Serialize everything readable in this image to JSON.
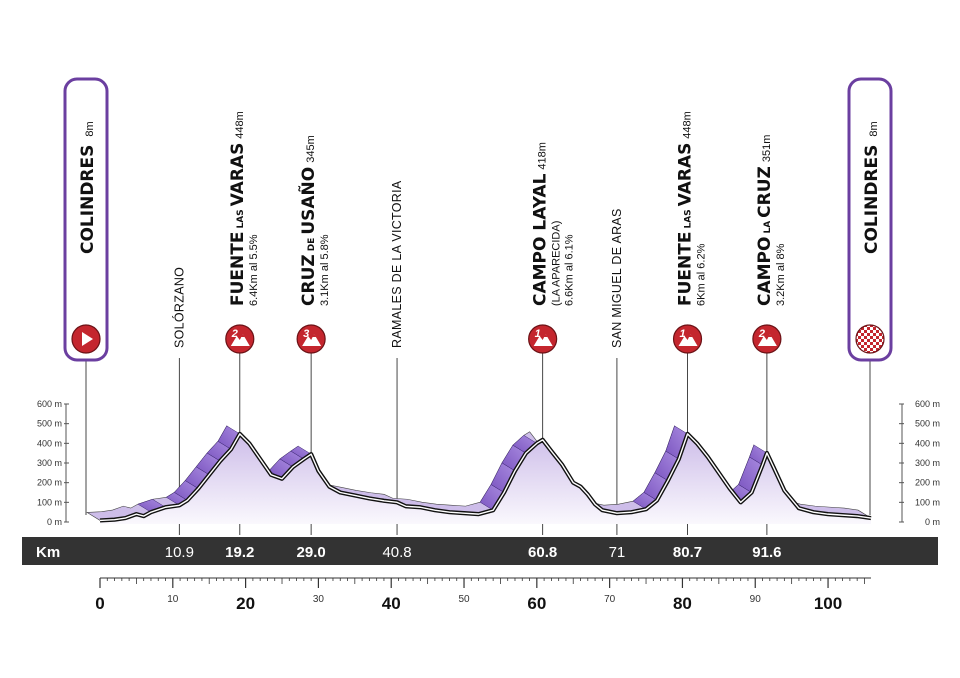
{
  "chart_data": {
    "type": "area",
    "title": "",
    "xlabel": "Km",
    "ylabel": "",
    "xlim": [
      0,
      105.9
    ],
    "ylim": [
      0,
      600
    ],
    "y_ticks": [
      "600 m",
      "500 m",
      "400 m",
      "300 m",
      "200 m",
      "100 m",
      "0 m"
    ],
    "x_ticks": [
      {
        "value": 0,
        "label": "0",
        "major": true
      },
      {
        "value": 10,
        "label": "10",
        "major": false
      },
      {
        "value": 20,
        "label": "20",
        "major": true
      },
      {
        "value": 30,
        "label": "30",
        "major": false
      },
      {
        "value": 40,
        "label": "40",
        "major": true
      },
      {
        "value": 50,
        "label": "50",
        "major": false
      },
      {
        "value": 60,
        "label": "60",
        "major": true
      },
      {
        "value": 70,
        "label": "70",
        "major": false
      },
      {
        "value": 80,
        "label": "80",
        "major": true
      },
      {
        "value": 90,
        "label": "90",
        "major": false
      },
      {
        "value": 100,
        "label": "100",
        "major": true
      }
    ],
    "profile": {
      "x": [
        0,
        2,
        3.5,
        5,
        6,
        7,
        9,
        10.9,
        12,
        13.5,
        15,
        16.5,
        18,
        19.2,
        20.5,
        22,
        23.5,
        25,
        26.5,
        28,
        29,
        30,
        31.5,
        33,
        35,
        37,
        39,
        40.8,
        42,
        44,
        46,
        48,
        50,
        52,
        54,
        55.5,
        57,
        58.5,
        60,
        60.8,
        62,
        63.5,
        65,
        66,
        67,
        68,
        69,
        71,
        73,
        75,
        76.5,
        78,
        79.5,
        80.7,
        82,
        83.5,
        85,
        86.5,
        88,
        89.5,
        91,
        91.6,
        92.5,
        94,
        96,
        98,
        100,
        102,
        104,
        105.9
      ],
      "y": [
        8,
        12,
        20,
        40,
        30,
        50,
        75,
        85,
        110,
        170,
        240,
        310,
        370,
        448,
        400,
        320,
        240,
        220,
        280,
        320,
        345,
        260,
        180,
        150,
        135,
        120,
        108,
        100,
        80,
        75,
        60,
        50,
        45,
        40,
        60,
        150,
        260,
        350,
        400,
        418,
        360,
        290,
        200,
        180,
        140,
        90,
        60,
        45,
        50,
        65,
        110,
        210,
        320,
        448,
        400,
        330,
        250,
        170,
        100,
        150,
        290,
        351,
        280,
        160,
        70,
        50,
        40,
        35,
        30,
        20
      ]
    },
    "start": {
      "name": "COLINDRES",
      "elevation": "8m",
      "km": 0
    },
    "finish": {
      "name": "COLINDRES",
      "elevation": "8m",
      "km": 105.9
    },
    "points": [
      {
        "type": "place",
        "name": "SOLÓRZANO",
        "km": 10.9,
        "km_label": "10.9"
      },
      {
        "type": "climb",
        "category": "2",
        "name_big1": "FUENTE",
        "name_small": "LAS",
        "name_big2": "VARAS",
        "elevation": "448m",
        "subtitle": "",
        "info": "6.4Km al 5.5%",
        "km": 19.2,
        "km_label": "19.2"
      },
      {
        "type": "climb",
        "category": "3",
        "name_big1": "CRUZ",
        "name_small": "DE",
        "name_big2": "USAÑO",
        "elevation": "345m",
        "subtitle": "",
        "info": "3.1Km al 5.8%",
        "km": 29.0,
        "km_label": "29.0"
      },
      {
        "type": "place",
        "name": "RAMALES DE LA VICTORIA",
        "km": 40.8,
        "km_label": "40.8"
      },
      {
        "type": "climb",
        "category": "1",
        "name_big1": "CAMPO LAYAL",
        "name_small": "",
        "name_big2": "",
        "elevation": "418m",
        "subtitle": "(LA APARECIDA)",
        "info": "6.6Km al 6.1%",
        "km": 60.8,
        "km_label": "60.8"
      },
      {
        "type": "place",
        "name": "SAN MIGUEL DE ARAS",
        "km": 71,
        "km_label": "71"
      },
      {
        "type": "climb",
        "category": "1",
        "name_big1": "FUENTE",
        "name_small": "LAS",
        "name_big2": "VARAS",
        "elevation": "448m",
        "subtitle": "",
        "info": "6Km al 6.2%",
        "km": 80.7,
        "km_label": "80.7"
      },
      {
        "type": "climb",
        "category": "2",
        "name_big1": "CAMPO",
        "name_small": "LA",
        "name_big2": "CRUZ",
        "elevation": "351m",
        "subtitle": "",
        "info": "3.2Km al 8%",
        "km": 91.6,
        "km_label": "91.6"
      }
    ],
    "km_bar_label": "Km",
    "colors": {
      "climb_fill": "#7b55c0",
      "climb_fill_light": "#a98be0",
      "area_top": "#cdbde9",
      "area_bottom": "#faf8fd",
      "icon_red": "#c4262e",
      "bar": "#333333",
      "frame": "#6b3fa0"
    }
  }
}
